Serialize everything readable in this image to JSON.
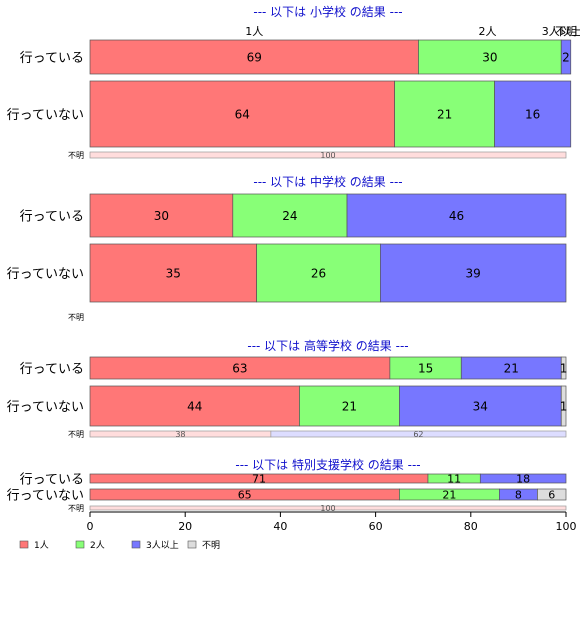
{
  "chart_data": {
    "type": "bar",
    "orientation": "horizontal",
    "stacked": true,
    "percent": true,
    "xlim": [
      0,
      100
    ],
    "xticks": [
      "0",
      "20",
      "40",
      "60",
      "80",
      "100"
    ],
    "legend_position": "bottom-left",
    "grid": false,
    "legend": [
      {
        "name": "1人",
        "color": "#FF7777"
      },
      {
        "name": "2人",
        "color": "#88FF77"
      },
      {
        "name": "3人以上",
        "color": "#7777FF"
      },
      {
        "name": "不明",
        "color": "#DDDDDD"
      }
    ],
    "top_category_labels": [
      {
        "text": "1人",
        "at": 34.5
      },
      {
        "text": "2人",
        "at": 83.5
      },
      {
        "text": "3人以上",
        "at": 99.1
      },
      {
        "text": "不明",
        "at": 100
      }
    ],
    "panels": [
      {
        "title": "--- 以下は 小学校 の結果 ---",
        "rows": [
          {
            "label": "行っている",
            "kind": "main",
            "values": [
              69,
              30,
              2,
              0
            ],
            "data_labels": [
              "69",
              "30",
              "2",
              ""
            ]
          },
          {
            "label": "行っていない",
            "kind": "main",
            "values": [
              64,
              21,
              16,
              0
            ],
            "data_labels": [
              "64",
              "21",
              "16",
              ""
            ]
          },
          {
            "label": "不明",
            "kind": "small",
            "values": [
              100,
              0,
              0,
              0
            ],
            "data_labels": [
              "100",
              "",
              "",
              ""
            ]
          }
        ]
      },
      {
        "title": "--- 以下は 中学校 の結果 ---",
        "rows": [
          {
            "label": "行っている",
            "kind": "main",
            "values": [
              30,
              24,
              46,
              0
            ],
            "data_labels": [
              "30",
              "24",
              "46",
              ""
            ]
          },
          {
            "label": "行っていない",
            "kind": "main",
            "values": [
              35,
              26,
              39,
              0
            ],
            "data_labels": [
              "35",
              "26",
              "39",
              ""
            ]
          },
          {
            "label": "不明",
            "kind": "small",
            "values": [
              0,
              0,
              0,
              0
            ],
            "data_labels": [
              "",
              "",
              "",
              ""
            ]
          }
        ]
      },
      {
        "title": "--- 以下は 高等学校 の結果 ---",
        "rows": [
          {
            "label": "行っている",
            "kind": "main",
            "values": [
              63,
              15,
              21,
              1
            ],
            "data_labels": [
              "63",
              "15",
              "21",
              "1"
            ]
          },
          {
            "label": "行っていない",
            "kind": "main",
            "values": [
              44,
              21,
              34,
              1
            ],
            "data_labels": [
              "44",
              "21",
              "34",
              "1"
            ]
          },
          {
            "label": "不明",
            "kind": "small",
            "values": [
              38,
              0,
              62,
              0
            ],
            "data_labels": [
              "38",
              "",
              "62",
              ""
            ]
          }
        ]
      },
      {
        "title": "--- 以下は 特別支援学校 の結果 ---",
        "rows": [
          {
            "label": "行っている",
            "kind": "main",
            "values": [
              71,
              11,
              18,
              0
            ],
            "data_labels": [
              "71",
              "11",
              "18",
              ""
            ]
          },
          {
            "label": "行っていない",
            "kind": "main",
            "values": [
              65,
              21,
              8,
              6
            ],
            "data_labels": [
              "65",
              "21",
              "8",
              "6"
            ]
          },
          {
            "label": "不明",
            "kind": "small",
            "values": [
              100,
              0,
              0,
              0
            ],
            "data_labels": [
              "100",
              "",
              "",
              ""
            ]
          }
        ]
      }
    ]
  }
}
